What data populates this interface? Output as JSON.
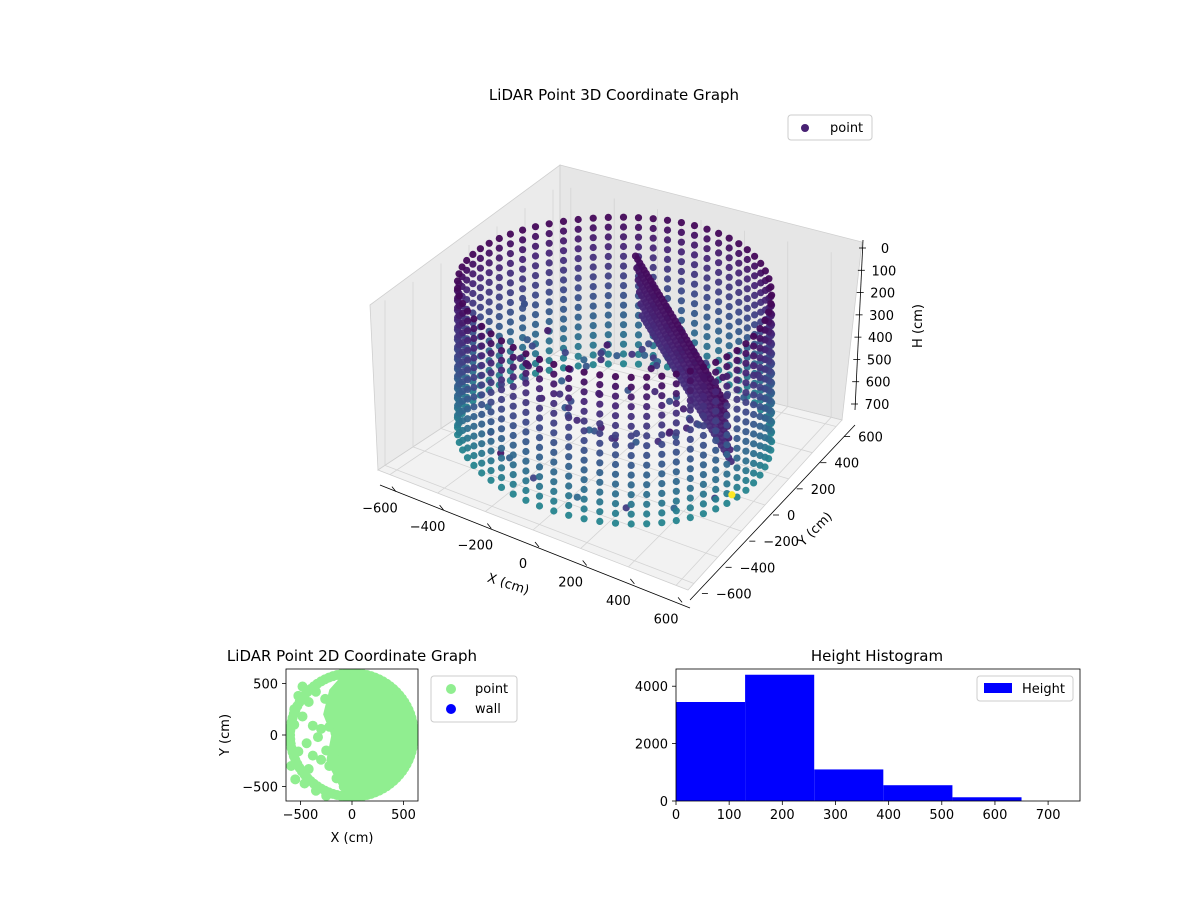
{
  "chart_data": [
    {
      "id": "plot3d",
      "type": "scatter",
      "projection": "3d",
      "title": "LiDAR Point 3D Coordinate Graph",
      "xlabel": "X (cm)",
      "ylabel": "Y (cm)",
      "zlabel": "H (cm)",
      "xlim": [
        -650,
        650
      ],
      "ylim": [
        -650,
        650
      ],
      "zlim": [
        0,
        760
      ],
      "z_inverted": true,
      "xticks": [
        "−600",
        "−400",
        "−200",
        "0",
        "200",
        "400",
        "600"
      ],
      "yticks": [
        "−600",
        "−400",
        "−200",
        "0",
        "200",
        "400",
        "600"
      ],
      "zticks": [
        "0",
        "100",
        "200",
        "300",
        "400",
        "500",
        "600",
        "700"
      ],
      "colormap": "viridis",
      "ring_radius": 600,
      "ring_height_range": [
        0,
        700
      ],
      "grid": true,
      "legend": {
        "position": "top-right",
        "entries": [
          {
            "label": "point",
            "color": "#482173"
          }
        ]
      },
      "outliers": [
        {
          "x": -640,
          "y": 380,
          "h": 430,
          "color": "#3b528b"
        },
        {
          "x": 640,
          "y": -260,
          "h": 560,
          "color": "#fde725"
        }
      ]
    },
    {
      "id": "plot2d",
      "type": "scatter",
      "title": "LiDAR Point 2D Coordinate Graph",
      "xlabel": "X (cm)",
      "ylabel": "Y (cm)",
      "xlim": [
        -640,
        640
      ],
      "ylim": [
        -640,
        640
      ],
      "xticks": [
        -500,
        0,
        500
      ],
      "yticks": [
        -500,
        0,
        500
      ],
      "x_tick_labels": [
        "−500",
        "0",
        "500"
      ],
      "y_tick_labels": [
        "−500",
        "0",
        "500"
      ],
      "ring_radius": 600,
      "legend": {
        "position": "outside-right",
        "entries": [
          {
            "label": "point",
            "color": "#90ee90"
          },
          {
            "label": "wall",
            "color": "#0000ff"
          }
        ]
      },
      "interior_points": [
        [
          -520,
          380
        ],
        [
          -420,
          320
        ],
        [
          -560,
          250
        ],
        [
          -480,
          180
        ],
        [
          -560,
          100
        ],
        [
          -380,
          90
        ],
        [
          -300,
          60
        ],
        [
          -330,
          -20
        ],
        [
          -440,
          -80
        ],
        [
          -520,
          -160
        ],
        [
          -380,
          -200
        ],
        [
          -300,
          -240
        ],
        [
          -250,
          -150
        ],
        [
          -180,
          -180
        ],
        [
          -120,
          -250
        ],
        [
          -220,
          -300
        ],
        [
          -420,
          -330
        ],
        [
          -550,
          -430
        ],
        [
          -460,
          -470
        ],
        [
          -350,
          -540
        ],
        [
          -250,
          -590
        ],
        [
          -150,
          -420
        ],
        [
          -80,
          -500
        ],
        [
          -30,
          -350
        ],
        [
          -350,
          420
        ],
        [
          -260,
          350
        ],
        [
          -480,
          470
        ],
        [
          -220,
          80
        ],
        [
          -160,
          20
        ],
        [
          -590,
          -300
        ]
      ]
    },
    {
      "id": "hist",
      "type": "bar",
      "title": "Height Histogram",
      "xlim": [
        0,
        760
      ],
      "ylim": [
        0,
        4600
      ],
      "xticks": [
        0,
        100,
        200,
        300,
        400,
        500,
        600,
        700
      ],
      "yticks": [
        0,
        2000,
        4000
      ],
      "bin_edges": [
        0,
        130,
        260,
        390,
        520,
        650,
        780
      ],
      "values": [
        3450,
        4400,
        1100,
        550,
        130,
        0
      ],
      "color": "#0000ff",
      "legend": {
        "position": "top-right",
        "entries": [
          {
            "label": "Height",
            "color": "#0000ff"
          }
        ]
      }
    }
  ]
}
